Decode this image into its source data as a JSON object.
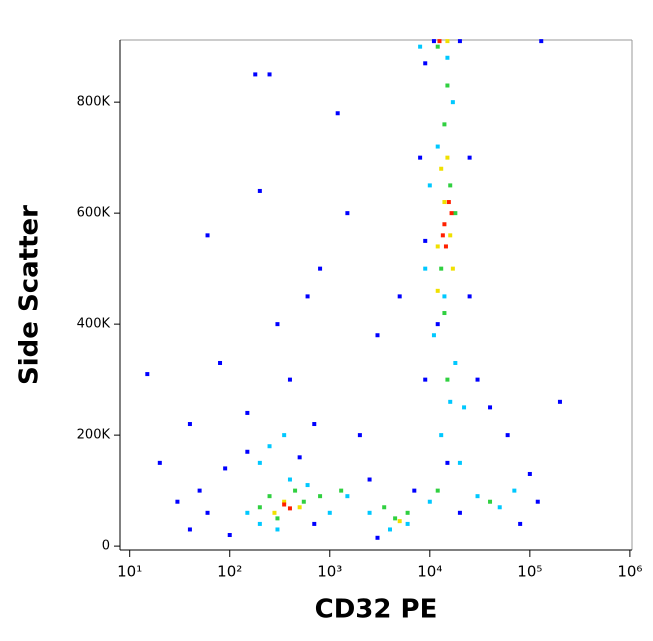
{
  "chart_data": {
    "type": "scatter",
    "xlabel": "CD32 PE",
    "ylabel": "Side Scatter",
    "xscale": "log",
    "xlim": [
      8,
      1050000
    ],
    "xticks": [
      {
        "value": 10,
        "label": "10¹"
      },
      {
        "value": 100,
        "label": "10²"
      },
      {
        "value": 1000,
        "label": "10³"
      },
      {
        "value": 10000,
        "label": "10⁴"
      },
      {
        "value": 100000,
        "label": "10⁵"
      },
      {
        "value": 1000000,
        "label": "10⁶"
      }
    ],
    "ylim": [
      -7000,
      912000
    ],
    "yticks": [
      0,
      {
        "value": 200000,
        "label": "200K"
      },
      {
        "value": 400000,
        "label": "400K"
      },
      {
        "value": 600000,
        "label": "600K"
      },
      {
        "value": 800000,
        "label": "800K"
      }
    ],
    "series": [
      {
        "color": "#0000ff",
        "x": [
          15,
          20,
          40,
          60,
          80,
          150,
          180,
          200,
          250,
          300,
          400,
          600,
          800,
          1200,
          1500,
          3000,
          5000,
          8000,
          9000,
          30000,
          40000,
          60000,
          100000,
          200000,
          120000,
          50,
          60,
          30,
          150,
          700,
          2000,
          2500,
          40,
          100,
          700,
          3000,
          15000,
          9000,
          25000,
          7000,
          80000,
          130000,
          11000,
          20000,
          500,
          90,
          20000,
          12000,
          9000,
          25000
        ],
        "values": [
          310000,
          150000,
          220000,
          560000,
          330000,
          240000,
          850000,
          640000,
          850000,
          400000,
          300000,
          450000,
          500000,
          780000,
          600000,
          380000,
          450000,
          700000,
          870000,
          300000,
          250000,
          200000,
          130000,
          260000,
          80000,
          100000,
          60000,
          80000,
          170000,
          220000,
          200000,
          120000,
          30000,
          20000,
          40000,
          15000,
          150000,
          550000,
          700000,
          100000,
          40000,
          910000,
          910000,
          910000,
          160000,
          140000,
          60000,
          400000,
          300000,
          450000
        ]
      },
      {
        "color": "#00c8ff",
        "x": [
          200,
          250,
          400,
          150,
          200,
          600,
          1500,
          2500,
          4000,
          6000,
          10000,
          13000,
          16000,
          18000,
          11000,
          14000,
          12000,
          17000,
          10000,
          30000,
          50000,
          70000,
          8000,
          15000,
          20000,
          300,
          1000,
          350,
          22000,
          9000
        ],
        "values": [
          150000,
          180000,
          120000,
          60000,
          40000,
          110000,
          90000,
          60000,
          30000,
          40000,
          80000,
          200000,
          260000,
          330000,
          380000,
          450000,
          720000,
          800000,
          650000,
          90000,
          70000,
          100000,
          900000,
          880000,
          150000,
          30000,
          60000,
          200000,
          250000,
          500000
        ]
      },
      {
        "color": "#30d040",
        "x": [
          250,
          300,
          450,
          800,
          1300,
          4500,
          6000,
          12000,
          15000,
          14000,
          13000,
          16000,
          14000,
          18000,
          40000,
          15000,
          12000,
          200,
          550,
          3500
        ],
        "values": [
          90000,
          50000,
          100000,
          90000,
          100000,
          50000,
          60000,
          100000,
          300000,
          420000,
          500000,
          650000,
          760000,
          600000,
          80000,
          830000,
          900000,
          70000,
          80000,
          70000
        ]
      },
      {
        "color": "#f0e000",
        "x": [
          280,
          350,
          12000,
          16000,
          13000,
          15000,
          17000,
          14000,
          500,
          15000,
          5000,
          12000
        ],
        "values": [
          60000,
          80000,
          540000,
          560000,
          680000,
          700000,
          500000,
          620000,
          70000,
          910000,
          45000,
          460000
        ]
      },
      {
        "color": "#ff2000",
        "x": [
          350,
          400,
          14000,
          15500,
          13500,
          16500,
          12500,
          14500
        ],
        "values": [
          75000,
          68000,
          580000,
          620000,
          560000,
          600000,
          910000,
          540000
        ]
      }
    ]
  }
}
